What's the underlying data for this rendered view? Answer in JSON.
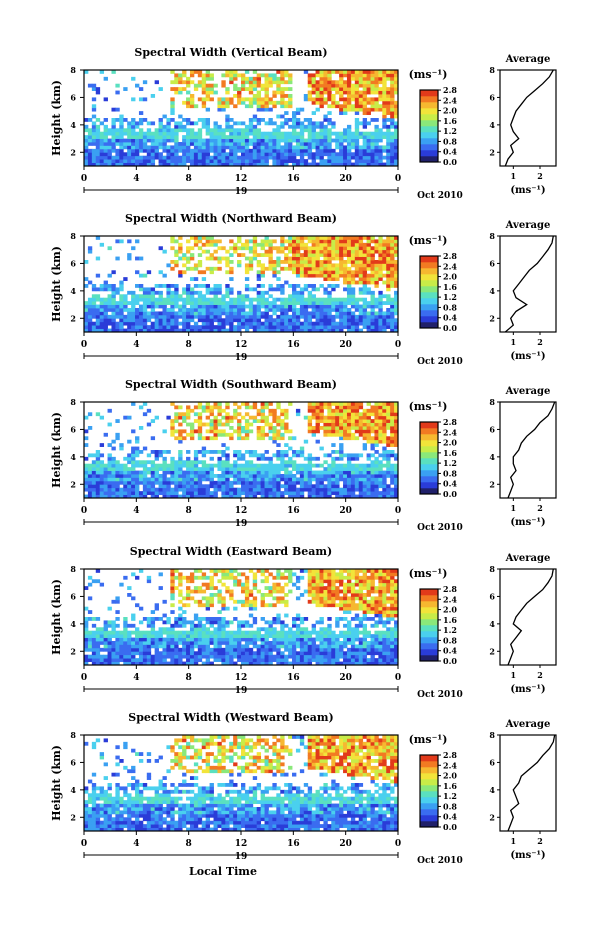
{
  "figure": {
    "xlabel": "Local Time",
    "cbar_unit": "(ms⁻¹)",
    "avg_title": "Average",
    "avg_xlabel": "(ms⁻¹)",
    "date_day": "19",
    "date_month": "Oct 2010",
    "colorscale": [
      "#20206a",
      "#2a3cd8",
      "#3a6cf0",
      "#3aa0f2",
      "#4ad0ee",
      "#5ae0c0",
      "#8ae87a",
      "#c8ec48",
      "#f2e43a",
      "#f6b830",
      "#f27a22",
      "#e23a1a"
    ]
  },
  "chart_data": [
    {
      "type": "heatmap",
      "title": "Spectral Width (Vertical Beam)",
      "ylabel": "Height (km)",
      "xlim": [
        0,
        24
      ],
      "ylim": [
        1,
        8
      ],
      "xticks": [
        "0",
        "4",
        "8",
        "12",
        "16",
        "20",
        "0"
      ],
      "yticks": [
        "2",
        "4",
        "6",
        "8"
      ],
      "colorbar": {
        "range": [
          0,
          2.8
        ],
        "ticks": [
          "2.8",
          "2.4",
          "2.0",
          "1.6",
          "1.2",
          "0.8",
          "0.4",
          "0.0"
        ]
      },
      "high_width_region": {
        "hours": [
          17,
          24
        ],
        "heights_km": [
          5.5,
          8
        ]
      },
      "average_profile": {
        "xlim": [
          0.5,
          2.6
        ],
        "xticks": [
          "1",
          "2"
        ],
        "yticks": [
          "2",
          "4",
          "6",
          "8"
        ],
        "points": [
          [
            0.7,
            1.0
          ],
          [
            0.8,
            1.5
          ],
          [
            1.0,
            2.0
          ],
          [
            0.9,
            2.5
          ],
          [
            1.2,
            3.0
          ],
          [
            1.0,
            3.5
          ],
          [
            0.9,
            4.0
          ],
          [
            1.0,
            4.5
          ],
          [
            1.1,
            5.0
          ],
          [
            1.3,
            5.5
          ],
          [
            1.5,
            6.0
          ],
          [
            1.8,
            6.5
          ],
          [
            2.1,
            7.0
          ],
          [
            2.35,
            7.5
          ],
          [
            2.5,
            8.0
          ]
        ]
      }
    },
    {
      "type": "heatmap",
      "title": "Spectral Width (Northward Beam)",
      "ylabel": "Height (km)",
      "xlim": [
        0,
        24
      ],
      "ylim": [
        1,
        8
      ],
      "xticks": [
        "0",
        "4",
        "8",
        "12",
        "16",
        "20",
        "0"
      ],
      "yticks": [
        "2",
        "4",
        "6",
        "8"
      ],
      "colorbar": {
        "range": [
          0,
          2.8
        ],
        "ticks": [
          "2.8",
          "2.4",
          "2.0",
          "1.6",
          "1.2",
          "0.8",
          "0.4",
          "0.0"
        ]
      },
      "high_width_region": {
        "hours": [
          16,
          24
        ],
        "heights_km": [
          5.2,
          8
        ]
      },
      "average_profile": {
        "xlim": [
          0.5,
          2.6
        ],
        "xticks": [
          "1",
          "2"
        ],
        "yticks": [
          "2",
          "4",
          "6",
          "8"
        ],
        "points": [
          [
            0.7,
            1.0
          ],
          [
            1.0,
            1.5
          ],
          [
            0.9,
            2.0
          ],
          [
            1.1,
            2.5
          ],
          [
            1.5,
            3.0
          ],
          [
            1.1,
            3.5
          ],
          [
            1.0,
            4.0
          ],
          [
            1.2,
            4.5
          ],
          [
            1.4,
            5.0
          ],
          [
            1.6,
            5.5
          ],
          [
            1.9,
            6.0
          ],
          [
            2.1,
            6.5
          ],
          [
            2.3,
            7.0
          ],
          [
            2.45,
            7.5
          ],
          [
            2.5,
            8.0
          ]
        ]
      }
    },
    {
      "type": "heatmap",
      "title": "Spectral Width (Southward Beam)",
      "ylabel": "Height (km)",
      "xlim": [
        0,
        24
      ],
      "ylim": [
        1,
        8
      ],
      "xticks": [
        "0",
        "4",
        "8",
        "12",
        "16",
        "20",
        "0"
      ],
      "yticks": [
        "2",
        "4",
        "6",
        "8"
      ],
      "colorbar": {
        "range": [
          0,
          2.8
        ],
        "ticks": [
          "2.8",
          "2.4",
          "2.0",
          "1.6",
          "1.2",
          "0.8",
          "0.4",
          "0.0"
        ]
      },
      "high_width_region": {
        "hours": [
          17,
          24
        ],
        "heights_km": [
          5.8,
          8
        ]
      },
      "average_profile": {
        "xlim": [
          0.5,
          2.6
        ],
        "xticks": [
          "1",
          "2"
        ],
        "yticks": [
          "2",
          "4",
          "6",
          "8"
        ],
        "points": [
          [
            0.8,
            1.0
          ],
          [
            0.9,
            1.5
          ],
          [
            1.0,
            2.0
          ],
          [
            0.9,
            2.5
          ],
          [
            1.1,
            3.0
          ],
          [
            1.0,
            3.5
          ],
          [
            1.0,
            4.0
          ],
          [
            1.2,
            4.5
          ],
          [
            1.3,
            5.0
          ],
          [
            1.5,
            5.5
          ],
          [
            1.8,
            6.0
          ],
          [
            2.0,
            6.5
          ],
          [
            2.3,
            7.0
          ],
          [
            2.45,
            7.5
          ],
          [
            2.55,
            8.0
          ]
        ]
      }
    },
    {
      "type": "heatmap",
      "title": "Spectral Width (Eastward Beam)",
      "ylabel": "Height (km)",
      "xlim": [
        0,
        24
      ],
      "ylim": [
        1,
        8
      ],
      "xticks": [
        "0",
        "4",
        "8",
        "12",
        "16",
        "20",
        "0"
      ],
      "yticks": [
        "2",
        "4",
        "6",
        "8"
      ],
      "colorbar": {
        "range": [
          0,
          2.8
        ],
        "ticks": [
          "2.8",
          "2.4",
          "2.0",
          "1.6",
          "1.2",
          "0.8",
          "0.4",
          "0.0"
        ]
      },
      "high_width_region": {
        "hours": [
          17,
          24
        ],
        "heights_km": [
          5.5,
          8
        ]
      },
      "average_profile": {
        "xlim": [
          0.5,
          2.6
        ],
        "xticks": [
          "1",
          "2"
        ],
        "yticks": [
          "2",
          "4",
          "6",
          "8"
        ],
        "points": [
          [
            0.8,
            1.0
          ],
          [
            0.9,
            1.5
          ],
          [
            1.0,
            2.0
          ],
          [
            0.9,
            2.5
          ],
          [
            1.1,
            3.0
          ],
          [
            1.3,
            3.5
          ],
          [
            1.0,
            4.0
          ],
          [
            1.1,
            4.5
          ],
          [
            1.3,
            5.0
          ],
          [
            1.5,
            5.5
          ],
          [
            1.8,
            6.0
          ],
          [
            2.1,
            6.5
          ],
          [
            2.3,
            7.0
          ],
          [
            2.45,
            7.5
          ],
          [
            2.5,
            8.0
          ]
        ]
      }
    },
    {
      "type": "heatmap",
      "title": "Spectral Width (Westward Beam)",
      "ylabel": "Height (km)",
      "xlim": [
        0,
        24
      ],
      "ylim": [
        1,
        8
      ],
      "xticks": [
        "0",
        "4",
        "8",
        "12",
        "16",
        "20",
        "0"
      ],
      "yticks": [
        "2",
        "4",
        "6",
        "8"
      ],
      "colorbar": {
        "range": [
          0,
          2.8
        ],
        "ticks": [
          "2.8",
          "2.4",
          "2.0",
          "1.6",
          "1.2",
          "0.8",
          "0.4",
          "0.0"
        ]
      },
      "high_width_region": {
        "hours": [
          17,
          24
        ],
        "heights_km": [
          5.6,
          8
        ]
      },
      "average_profile": {
        "xlim": [
          0.5,
          2.6
        ],
        "xticks": [
          "1",
          "2"
        ],
        "yticks": [
          "2",
          "4",
          "6",
          "8"
        ],
        "points": [
          [
            0.8,
            1.0
          ],
          [
            0.9,
            1.5
          ],
          [
            1.0,
            2.0
          ],
          [
            0.9,
            2.5
          ],
          [
            1.2,
            3.0
          ],
          [
            1.1,
            3.5
          ],
          [
            1.0,
            4.0
          ],
          [
            1.2,
            4.5
          ],
          [
            1.3,
            5.0
          ],
          [
            1.6,
            5.5
          ],
          [
            1.9,
            6.0
          ],
          [
            2.1,
            6.5
          ],
          [
            2.35,
            7.0
          ],
          [
            2.5,
            7.5
          ],
          [
            2.55,
            8.0
          ]
        ]
      }
    }
  ]
}
